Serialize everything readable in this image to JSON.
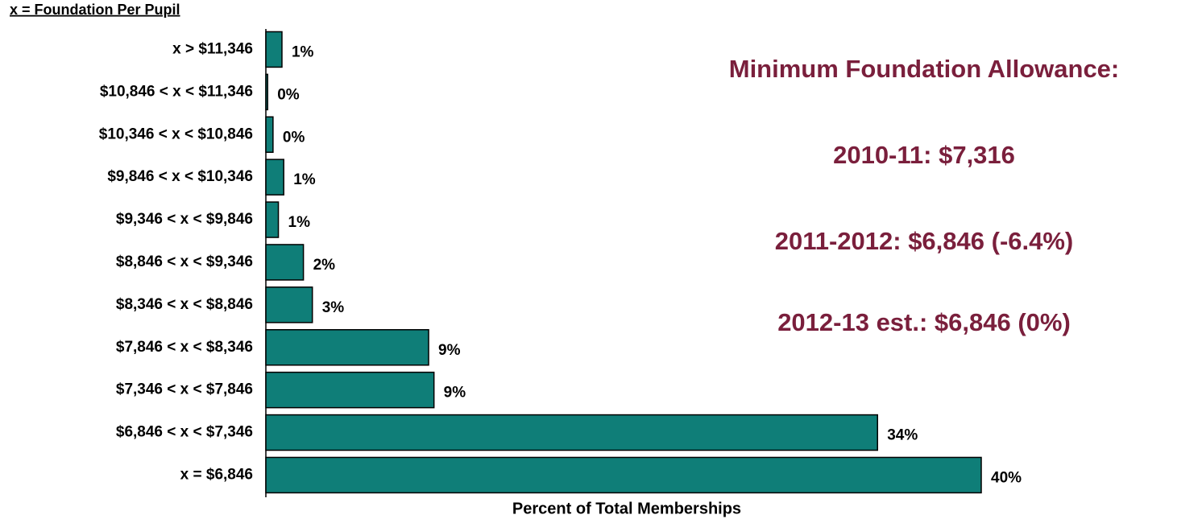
{
  "chart_data": {
    "type": "bar",
    "orientation": "horizontal",
    "title": "x = Foundation Per Pupil",
    "x_label": "Percent of Total Memberships",
    "categories": [
      "x > $11,346",
      "$10,846 < x < $11,346",
      "$10,346 < x < $10,846",
      "$9,846 < x < $10,346",
      "$9,346 < x < $9,846",
      "$8,846 < x < $9,346",
      "$8,346 < x < $8,846",
      "$7,846 < x < $8,346",
      "$7,346 < x < $7,846",
      "$6,846 < x < $7,346",
      "x = $6,846"
    ],
    "values": [
      0.9,
      0.1,
      0.4,
      1.0,
      0.7,
      2.1,
      2.6,
      9.1,
      9.4,
      34.2,
      40.0
    ],
    "value_labels": [
      "1%",
      "0%",
      "0%",
      "1%",
      "1%",
      "2%",
      "3%",
      "9%",
      "9%",
      "34%",
      "40%"
    ],
    "color": "#0f7e78",
    "xlim": [
      0,
      45
    ],
    "annotations": [
      "Minimum Foundation Allowance:",
      "2010-11: $7,316",
      "2011-2012: $6,846 (-6.4%)",
      "2012-13 est.: $6,846 (0%)"
    ]
  }
}
